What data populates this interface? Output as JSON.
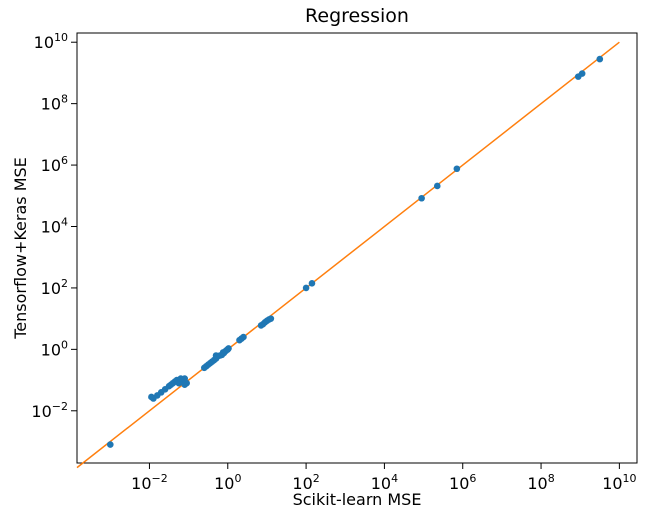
{
  "chart_data": {
    "type": "scatter",
    "title": "Regression",
    "xlabel": "Scikit-learn MSE",
    "ylabel": "Tensorflow+Keras MSE",
    "xscale": "log",
    "yscale": "log",
    "xlim_exp": [
      -3.85,
      10.45
    ],
    "ylim_exp": [
      -3.7,
      10.3
    ],
    "x_ticks": [
      {
        "base": "10",
        "exp": "−2",
        "value": -2
      },
      {
        "base": "10",
        "exp": "0",
        "value": 0
      },
      {
        "base": "10",
        "exp": "2",
        "value": 2
      },
      {
        "base": "10",
        "exp": "4",
        "value": 4
      },
      {
        "base": "10",
        "exp": "6",
        "value": 6
      },
      {
        "base": "10",
        "exp": "8",
        "value": 8
      },
      {
        "base": "10",
        "exp": "10",
        "value": 10
      }
    ],
    "y_ticks": [
      {
        "base": "10",
        "exp": "−2",
        "value": -2
      },
      {
        "base": "10",
        "exp": "0",
        "value": 0
      },
      {
        "base": "10",
        "exp": "2",
        "value": 2
      },
      {
        "base": "10",
        "exp": "4",
        "value": 4
      },
      {
        "base": "10",
        "exp": "6",
        "value": 6
      },
      {
        "base": "10",
        "exp": "8",
        "value": 8
      },
      {
        "base": "10",
        "exp": "10",
        "value": 10
      }
    ],
    "grid": false,
    "marker_color": "#1f77b4",
    "line_color": "#ff7f0e",
    "reference_line_exp": {
      "start": -3.85,
      "end": 10
    },
    "points_log10": [
      [
        -3.0,
        -3.1
      ],
      [
        -1.95,
        -1.55
      ],
      [
        -1.9,
        -1.6
      ],
      [
        -1.8,
        -1.5
      ],
      [
        -1.7,
        -1.4
      ],
      [
        -1.6,
        -1.3
      ],
      [
        -1.5,
        -1.2
      ],
      [
        -1.45,
        -1.15
      ],
      [
        -1.4,
        -1.1
      ],
      [
        -1.35,
        -1.05
      ],
      [
        -1.3,
        -1.0
      ],
      [
        -1.25,
        -1.1
      ],
      [
        -1.2,
        -1.0
      ],
      [
        -1.15,
        -1.05
      ],
      [
        -1.1,
        -0.95
      ],
      [
        -1.05,
        -1.1
      ],
      [
        -1.2,
        -0.95
      ],
      [
        -1.1,
        -1.15
      ],
      [
        -0.6,
        -0.6
      ],
      [
        -0.55,
        -0.55
      ],
      [
        -0.5,
        -0.5
      ],
      [
        -0.45,
        -0.45
      ],
      [
        -0.4,
        -0.4
      ],
      [
        -0.35,
        -0.35
      ],
      [
        -0.3,
        -0.3
      ],
      [
        -0.3,
        -0.2
      ],
      [
        -0.25,
        -0.22
      ],
      [
        -0.2,
        -0.2
      ],
      [
        -0.15,
        -0.18
      ],
      [
        -0.12,
        -0.1
      ],
      [
        -0.1,
        -0.12
      ],
      [
        -0.05,
        -0.05
      ],
      [
        -0.02,
        -0.02
      ],
      [
        0.0,
        0.0
      ],
      [
        0.02,
        0.03
      ],
      [
        0.3,
        0.3
      ],
      [
        0.35,
        0.35
      ],
      [
        0.4,
        0.4
      ],
      [
        0.85,
        0.78
      ],
      [
        0.9,
        0.82
      ],
      [
        0.95,
        0.88
      ],
      [
        1.0,
        0.93
      ],
      [
        1.05,
        0.97
      ],
      [
        1.1,
        1.0
      ],
      [
        2.0,
        2.0
      ],
      [
        2.15,
        2.15
      ],
      [
        4.95,
        4.92
      ],
      [
        5.35,
        5.32
      ],
      [
        5.85,
        5.88
      ],
      [
        8.95,
        8.88
      ],
      [
        9.05,
        8.98
      ],
      [
        9.5,
        9.45
      ]
    ]
  }
}
